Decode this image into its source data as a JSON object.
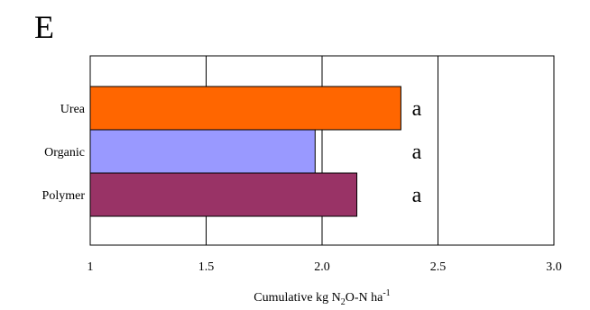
{
  "panel_letter": "E",
  "chart_data": {
    "type": "bar",
    "orientation": "horizontal",
    "categories": [
      "Urea",
      "Organic",
      "Polymer"
    ],
    "values": [
      2.34,
      1.97,
      2.15
    ],
    "bar_colors": [
      "#FF6600",
      "#9999FF",
      "#993366"
    ],
    "significance_letters": [
      "a",
      "a",
      "a"
    ],
    "xlabel": {
      "prefix": "Cumulative kg N",
      "sub": "2",
      "middle": "O-N ha",
      "sup": "-1"
    },
    "xlim": [
      1,
      3.0
    ],
    "x_ticks": [
      1,
      1.5,
      2.0,
      2.5,
      3.0
    ],
    "x_tick_labels": [
      "1",
      "1.5",
      "2.0",
      "2.5",
      "3.0"
    ],
    "grid": "vertical"
  }
}
